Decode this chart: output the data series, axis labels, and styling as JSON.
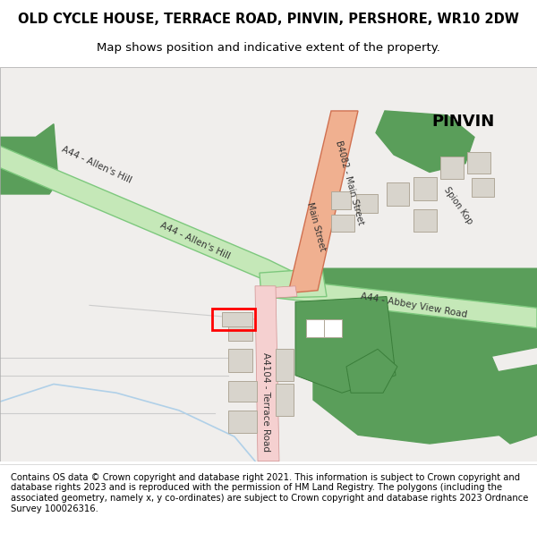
{
  "title": "OLD CYCLE HOUSE, TERRACE ROAD, PINVIN, PERSHORE, WR10 2DW",
  "subtitle": "Map shows position and indicative extent of the property.",
  "footer": "Contains OS data © Crown copyright and database right 2021. This information is subject to Crown copyright and database rights 2023 and is reproduced with the permission of HM Land Registry. The polygons (including the associated geometry, namely x, y co-ordinates) are subject to Crown copyright and database rights 2023 Ordnance Survey 100026316.",
  "map_bg": "#f0eeec",
  "road_a44_fill": "#c5e8b8",
  "road_a44_edge": "#7dc87d",
  "road_b4082_fill": "#f0b090",
  "road_b4082_edge": "#d07050",
  "road_terrace_fill": "#f5d0d0",
  "road_terrace_edge": "#d09090",
  "green_fill": "#5a9e5a",
  "green_edge": "#3a7e3a",
  "building_fill": "#d8d4cc",
  "building_edge": "#b0a898",
  "plot_edge": "#ff0000",
  "stream_color": "#b0d0e8",
  "text_color": "#333333",
  "pinvin_label": "PINVIN"
}
